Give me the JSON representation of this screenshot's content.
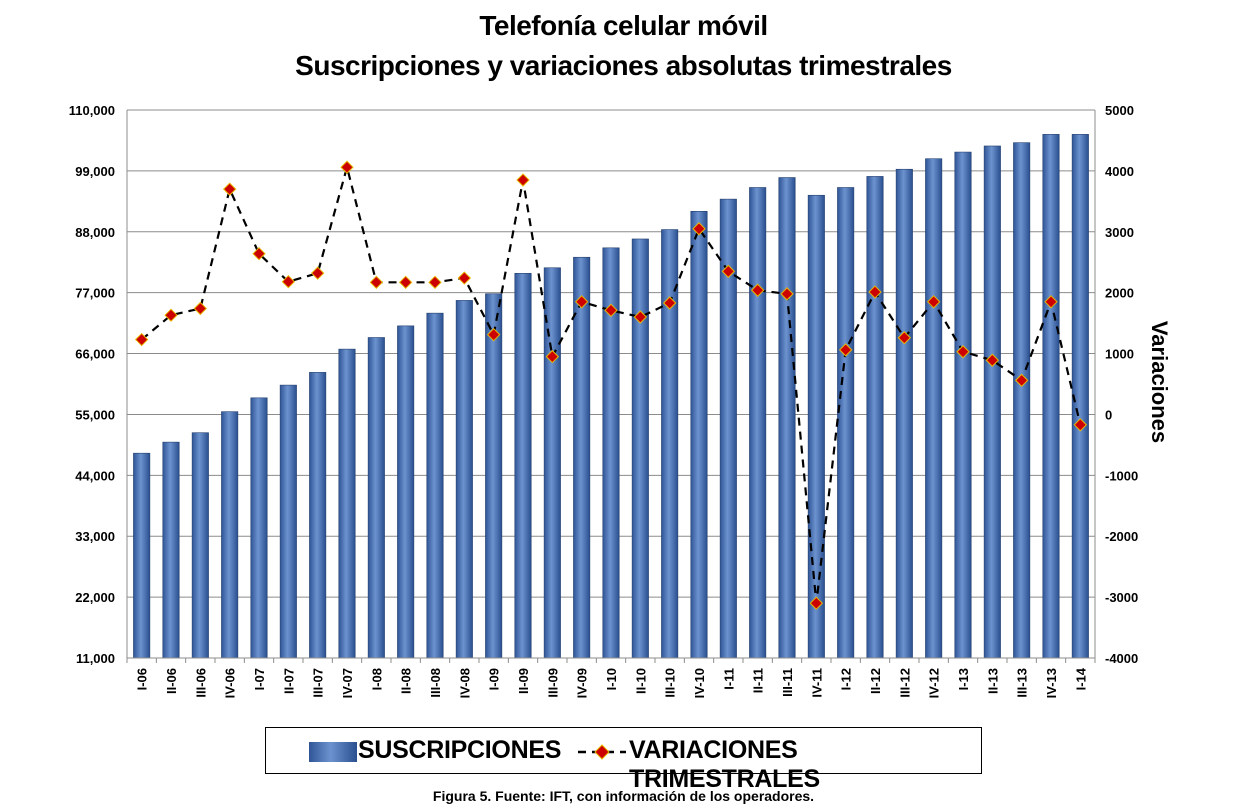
{
  "chart_data": {
    "type": "bar+line",
    "title": "Telefonía celular móvil",
    "subtitle": "Suscripciones y variaciones absolutas trimestrales",
    "categories": [
      "I-06",
      "II-06",
      "III-06",
      "IV-06",
      "I-07",
      "II-07",
      "III-07",
      "IV-07",
      "I-08",
      "II-08",
      "III-08",
      "IV-08",
      "I-09",
      "II-09",
      "III-09",
      "IV-09",
      "I-10",
      "II-10",
      "III-10",
      "IV-10",
      "I-11",
      "II-11",
      "III-11",
      "IV-11",
      "I-12",
      "II-12",
      "III-12",
      "IV-12",
      "I-13",
      "II-13",
      "III-13",
      "IV-13",
      "I-14"
    ],
    "y_left": {
      "lim": [
        11000,
        110000
      ],
      "ticks": [
        "11,000",
        "22,000",
        "33,000",
        "44,000",
        "55,000",
        "66,000",
        "77,000",
        "88,000",
        "99,000",
        "110,000"
      ]
    },
    "y_right": {
      "label": "Variaciones",
      "lim": [
        -4000,
        5000
      ],
      "ticks": [
        "-4000",
        "-3000",
        "-2000",
        "-1000",
        "0",
        "1000",
        "2000",
        "3000",
        "4000",
        "5000"
      ]
    },
    "grid": true,
    "legend_position": "bottom",
    "series": [
      {
        "name": "SUSCRIPCIONES",
        "kind": "bar",
        "axis": "left",
        "color": "#4a72b0",
        "values": [
          48000,
          50000,
          51700,
          55500,
          58000,
          60300,
          62600,
          66800,
          68900,
          71000,
          73300,
          75600,
          76800,
          80500,
          81500,
          83400,
          85100,
          86700,
          88400,
          91700,
          93900,
          96000,
          97800,
          94600,
          96000,
          98000,
          99300,
          101200,
          102400,
          103500,
          104100,
          105600,
          105600
        ]
      },
      {
        "name": "VARIACIONES TRIMESTRALES",
        "kind": "line",
        "axis": "right",
        "color": "#cc0000",
        "values": [
          1230,
          1630,
          1740,
          3700,
          2640,
          2180,
          2320,
          4060,
          2170,
          2170,
          2170,
          2240,
          1310,
          3850,
          950,
          1850,
          1710,
          1600,
          1830,
          3050,
          2350,
          2040,
          1980,
          -3100,
          1060,
          2010,
          1260,
          1850,
          1030,
          890,
          560,
          1850,
          -170
        ]
      }
    ]
  },
  "caption": "Figura 5. Fuente: IFT, con información de los operadores."
}
